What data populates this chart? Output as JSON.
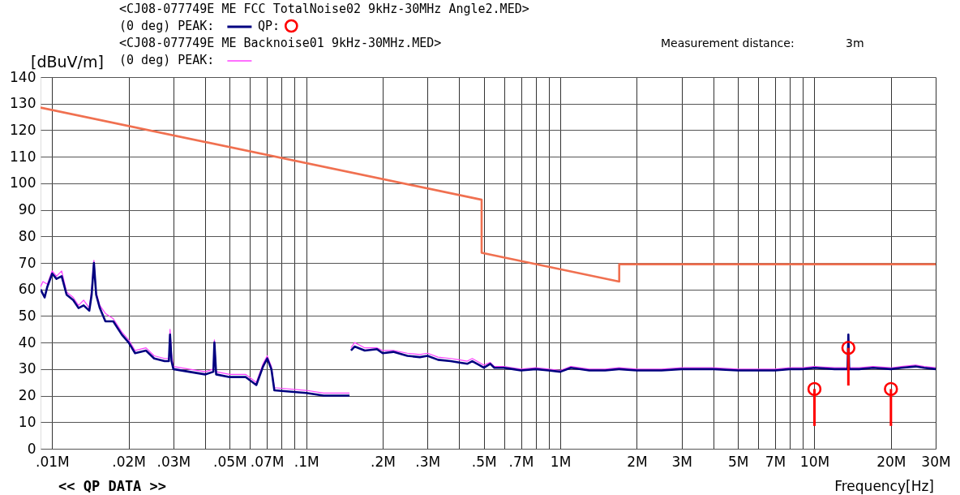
{
  "chart_data": {
    "type": "line",
    "xlabel": "Frequency[Hz]",
    "ylabel": "[dBuV/m]",
    "annotations": [
      "<CJ08-077749E ME FCC TotalNoise02 9kHz-30MHz Angle2.MED>",
      "<CJ08-077749E ME Backnoise01 9kHz-30MHz.MED>",
      "Measurement distance:",
      "3m",
      "<< QP DATA >>"
    ],
    "log": "x",
    "grid": true,
    "legend": "top",
    "xlim": [
      0.009,
      30
    ],
    "xticks": [
      {
        "value": 0.01,
        "label": ".01M"
      },
      {
        "value": 0.02,
        "label": ".02M"
      },
      {
        "value": 0.03,
        "label": ".03M"
      },
      {
        "value": 0.04,
        "label": null
      },
      {
        "value": 0.05,
        "label": ".05M"
      },
      {
        "value": 0.06,
        "label": null
      },
      {
        "value": 0.07,
        "label": ".07M"
      },
      {
        "value": 0.08,
        "label": null
      },
      {
        "value": 0.09,
        "label": null
      },
      {
        "value": 0.1,
        "label": ".1M"
      },
      {
        "value": 0.2,
        "label": ".2M"
      },
      {
        "value": 0.3,
        "label": ".3M"
      },
      {
        "value": 0.4,
        "label": null
      },
      {
        "value": 0.5,
        "label": ".5M"
      },
      {
        "value": 0.6,
        "label": null
      },
      {
        "value": 0.7,
        "label": ".7M"
      },
      {
        "value": 0.8,
        "label": null
      },
      {
        "value": 0.9,
        "label": null
      },
      {
        "value": 1,
        "label": "1M"
      },
      {
        "value": 2,
        "label": "2M"
      },
      {
        "value": 3,
        "label": "3M"
      },
      {
        "value": 4,
        "label": null
      },
      {
        "value": 5,
        "label": "5M"
      },
      {
        "value": 6,
        "label": null
      },
      {
        "value": 7,
        "label": "7M"
      },
      {
        "value": 8,
        "label": null
      },
      {
        "value": 9,
        "label": null
      },
      {
        "value": 10,
        "label": "10M"
      },
      {
        "value": 20,
        "label": "20M"
      },
      {
        "value": 30,
        "label": "30M"
      }
    ],
    "ylim": [
      0,
      140
    ],
    "yticks": [
      0,
      10,
      20,
      30,
      40,
      50,
      60,
      70,
      80,
      90,
      100,
      110,
      120,
      130,
      140
    ],
    "series": [
      {
        "name": "(0 deg)  PEAK:",
        "type": "line",
        "color": "#000080",
        "x": [
          0.009,
          0.00934,
          0.00957,
          0.01,
          0.0104,
          0.0109,
          0.0114,
          0.0121,
          0.0127,
          0.0133,
          0.014,
          0.0143,
          0.0146,
          0.0149,
          0.0154,
          0.0162,
          0.0174,
          0.0188,
          0.02,
          0.0212,
          0.0234,
          0.0252,
          0.0277,
          0.0288,
          0.0291,
          0.0295,
          0.03,
          0.0346,
          0.04,
          0.0431,
          0.0435,
          0.0442,
          0.05,
          0.0578,
          0.0636,
          0.0676,
          0.0702,
          0.0729,
          0.0749,
          0.1,
          0.117,
          0.148,
          0.149,
          0.15,
          0.155,
          0.17,
          0.19,
          0.2,
          0.22,
          0.25,
          0.28,
          0.3,
          0.33,
          0.37,
          0.4,
          0.43,
          0.45,
          0.48,
          0.5,
          0.53,
          0.55,
          0.6,
          0.65,
          0.7,
          0.8,
          0.9,
          1,
          1.1,
          1.3,
          1.5,
          1.7,
          2,
          2.5,
          3,
          4,
          5,
          6,
          7,
          8,
          9,
          10,
          12,
          13.5,
          13.6,
          13.7,
          15,
          17,
          20,
          22,
          25,
          27,
          30
        ],
        "values": [
          60,
          57,
          61,
          66,
          64,
          65,
          58,
          56,
          53,
          54,
          52,
          58,
          70,
          58,
          53,
          48,
          48,
          43,
          40,
          36,
          37,
          34,
          33,
          33,
          43,
          33,
          30,
          29,
          28,
          29,
          40,
          28,
          27,
          27,
          24,
          31,
          34,
          30,
          22,
          21,
          20,
          20,
          null,
          37,
          38.5,
          37,
          37.5,
          36,
          36.5,
          35,
          34.5,
          35,
          33.5,
          33,
          32.5,
          32,
          33,
          31.5,
          30.5,
          32,
          30.5,
          30.5,
          30,
          29.5,
          30,
          29.5,
          29,
          30.5,
          29.5,
          29.5,
          30,
          29.5,
          29.5,
          30,
          30,
          29.5,
          29.5,
          29.5,
          30,
          30,
          30.5,
          30,
          30,
          43,
          30,
          30,
          30.5,
          30,
          30.5,
          31,
          30.5,
          30
        ]
      },
      {
        "name": "QP:",
        "type": "scatter",
        "color": "#ff0000",
        "marker": "circle",
        "x": [
          10,
          13.6,
          20
        ],
        "values": [
          22.5,
          38,
          22.5
        ],
        "errors": [
          [
            8.6,
            22.5
          ],
          [
            23.8,
            38
          ],
          [
            8.6,
            22.5
          ]
        ]
      },
      {
        "name": "(0 deg)  PEAK:",
        "type": "line",
        "color": "#ff40ff",
        "x": [
          0.009,
          0.0092,
          0.00957,
          0.01,
          0.0104,
          0.0109,
          0.0114,
          0.0121,
          0.0127,
          0.0133,
          0.014,
          0.0143,
          0.0146,
          0.0149,
          0.0154,
          0.0162,
          0.0174,
          0.0188,
          0.02,
          0.0212,
          0.0234,
          0.0252,
          0.0277,
          0.0288,
          0.0291,
          0.0295,
          0.03,
          0.0346,
          0.04,
          0.0431,
          0.0435,
          0.0442,
          0.05,
          0.0578,
          0.0636,
          0.0676,
          0.0702,
          0.0729,
          0.0749,
          0.1,
          0.117,
          0.148,
          0.149,
          0.15,
          0.155,
          0.17,
          0.19,
          0.2,
          0.22,
          0.25,
          0.28,
          0.3,
          0.33,
          0.37,
          0.4,
          0.43,
          0.45,
          0.48,
          0.5,
          0.53,
          0.55,
          0.6,
          0.65,
          0.7,
          0.8,
          0.9,
          1,
          1.1,
          1.3,
          1.5,
          1.7,
          2,
          2.5,
          3,
          4,
          5,
          6,
          7,
          8,
          9,
          10,
          12,
          13.5,
          15,
          17,
          20,
          22,
          25,
          27,
          30
        ],
        "values": [
          61,
          63,
          62,
          67,
          65,
          67,
          59,
          57,
          54,
          56,
          53,
          60,
          71,
          59,
          54,
          51,
          49,
          44,
          41,
          37,
          38,
          35,
          34,
          34,
          45,
          36,
          31,
          30,
          29,
          30,
          41,
          29,
          28,
          28,
          25,
          32,
          35,
          31,
          23,
          22,
          21,
          21,
          null,
          38,
          40,
          38,
          38,
          37,
          37,
          36,
          35.5,
          36,
          34.5,
          34,
          33.5,
          33,
          34,
          32.5,
          31.5,
          32.5,
          31,
          31,
          30.5,
          30,
          30.5,
          30,
          29.5,
          31,
          30,
          30,
          30.5,
          30,
          30,
          30.5,
          30.5,
          30,
          30,
          30,
          30.5,
          30.5,
          31,
          30.5,
          30.5,
          30.5,
          31,
          30.5,
          31,
          31.5,
          31,
          30.5
        ]
      },
      {
        "type": "line",
        "color": "#f07050",
        "x": [
          0.009,
          0.49,
          0.49,
          1.705,
          1.705,
          30
        ],
        "values": [
          128.5,
          93.8,
          73.8,
          63,
          69.5,
          69.5
        ]
      }
    ]
  }
}
